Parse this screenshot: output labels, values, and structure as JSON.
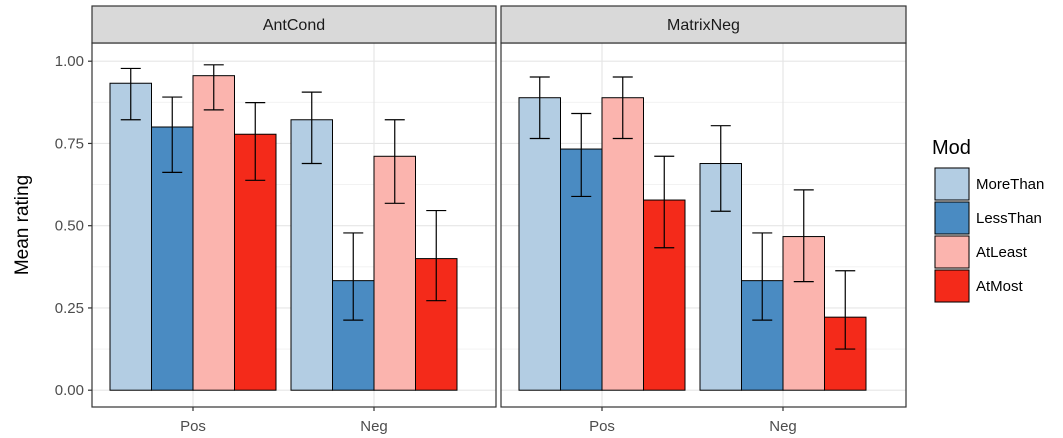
{
  "chart_data": {
    "type": "bar",
    "ylabel": "Mean rating",
    "ylim": [
      0,
      1.05
    ],
    "y_ticks": [
      "0.00",
      "0.25",
      "0.50",
      "0.75",
      "1.00"
    ],
    "y_tick_values": [
      0,
      0.25,
      0.5,
      0.75,
      1.0
    ],
    "categories": [
      "Pos",
      "Neg"
    ],
    "grid": true,
    "legend": {
      "title": "Mod",
      "placement": "right",
      "entries": [
        "MoreThan",
        "LessThan",
        "AtLeast",
        "AtMost"
      ],
      "colors": [
        "#b3cde3",
        "#4a8bc2",
        "#fbb4ae",
        "#f42a1a"
      ]
    },
    "panels": [
      {
        "title": "AntCond",
        "series": [
          {
            "name": "MoreThan",
            "values": [
              0.933,
              0.822
            ],
            "err_low": [
              0.822,
              0.689
            ],
            "err_high": [
              0.978,
              0.906
            ]
          },
          {
            "name": "LessThan",
            "values": [
              0.8,
              0.333
            ],
            "err_low": [
              0.662,
              0.213
            ],
            "err_high": [
              0.891,
              0.478
            ]
          },
          {
            "name": "AtLeast",
            "values": [
              0.956,
              0.711
            ],
            "err_low": [
              0.852,
              0.568
            ],
            "err_high": [
              0.989,
              0.822
            ]
          },
          {
            "name": "AtMost",
            "values": [
              0.778,
              0.4
            ],
            "err_low": [
              0.638,
              0.272
            ],
            "err_high": [
              0.874,
              0.546
            ]
          }
        ]
      },
      {
        "title": "MatrixNeg",
        "series": [
          {
            "name": "MoreThan",
            "values": [
              0.889,
              0.689
            ],
            "err_low": [
              0.765,
              0.544
            ],
            "err_high": [
              0.952,
              0.804
            ]
          },
          {
            "name": "LessThan",
            "values": [
              0.733,
              0.333
            ],
            "err_low": [
              0.589,
              0.213
            ],
            "err_high": [
              0.841,
              0.478
            ]
          },
          {
            "name": "AtLeast",
            "values": [
              0.889,
              0.467
            ],
            "err_low": [
              0.765,
              0.33
            ],
            "err_high": [
              0.952,
              0.609
            ]
          },
          {
            "name": "AtMost",
            "values": [
              0.578,
              0.222
            ],
            "err_low": [
              0.433,
              0.125
            ],
            "err_high": [
              0.711,
              0.363
            ]
          }
        ]
      }
    ]
  }
}
